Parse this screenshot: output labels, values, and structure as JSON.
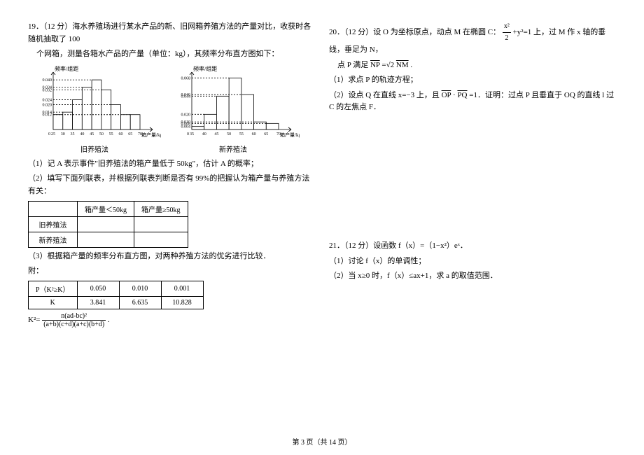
{
  "page": {
    "footer": "第 3 页（共 14 页）"
  },
  "q19": {
    "header": "19．（12 分）海水养殖场进行某水产品的新、旧网箱养殖方法的产量对比，收获时各随机抽取了 100",
    "header2": "个网箱，测量各箱水产品的产量（单位：kg），其频率分布直方图如下：",
    "ylabel1": "频率/组距",
    "ylabel2": "频率/组距",
    "xlabel1": "箱产量/kg",
    "xlabel2": "箱产量/kg",
    "method1": "旧养殖法",
    "method2": "新养殖法",
    "hist1": {
      "yticks": [
        "0.040",
        "0.034",
        "0.032",
        "0.024",
        "0.020",
        "0.014",
        "0.012"
      ],
      "xticks": [
        "25",
        "30",
        "35",
        "40",
        "45",
        "50",
        "55",
        "60",
        "65",
        "70"
      ],
      "bars": [
        0.012,
        0.014,
        0.024,
        0.034,
        0.04,
        0.032,
        0.02,
        0.012,
        0.012
      ],
      "ymax": 0.044,
      "bar_color": "#ffffff",
      "line_color": "#000000"
    },
    "hist2": {
      "yticks": [
        "0.068",
        "0.046",
        "0.044",
        "0.020",
        "0.010",
        "0.008",
        "0.004"
      ],
      "xticks": [
        "35",
        "40",
        "45",
        "50",
        "55",
        "60",
        "65",
        "70"
      ],
      "bars": [
        0.004,
        0.02,
        0.044,
        0.068,
        0.046,
        0.01,
        0.008
      ],
      "ymax": 0.072,
      "bar_color": "#ffffff",
      "line_color": "#000000"
    },
    "sub1": "（1）记 A 表示事件\"旧养殖法的箱产量低于 50kg\"，估计 A 的概率；",
    "sub2": "（2）填写下面列联表，并根据列联表判断是否有 99%的把握认为箱产量与养殖方法有关：",
    "table1": {
      "h1": "",
      "h2": "箱产量＜50kg",
      "h3": "箱产量≥50kg",
      "r1": "旧养殖法",
      "r2": "新养殖法"
    },
    "sub3": "（3）根据箱产量的频率分布直方图，对两种养殖方法的优劣进行比较．",
    "appendix": "附：",
    "table2": {
      "r1c1": "P（K²≥K）",
      "r1c2": "0.050",
      "r1c3": "0.010",
      "r1c4": "0.001",
      "r2c1": "K",
      "r2c2": "3.841",
      "r2c3": "6.635",
      "r2c4": "10.828"
    },
    "formula_lhs": "K²=",
    "formula_num": "n(ad-bc)²",
    "formula_den": "(a+b)(c+d)(a+c)(b+d)",
    "formula_end": "."
  },
  "q20": {
    "header_a": "20．（12 分）设 O 为坐标原点，动点 M 在椭圆 C：",
    "frac_num": "x²",
    "frac_den": "2",
    "header_b": "+y²=1 上，过 M 作 x 轴的垂线，垂足为 N，",
    "line2a": "点 P 满足 ",
    "np": "NP",
    "eq": "=√2",
    "nm": "NM",
    "line2b": ".",
    "sub1": "（1）求点 P 的轨迹方程；",
    "sub2a": "（2）设点 Q 在直线 x=−3 上，且 ",
    "op": "OP",
    "dot": "·",
    "pq": "PQ",
    "sub2b": "=1．证明：过点 P 且垂直于 OQ 的直线 l 过 C 的左焦点 F．"
  },
  "q21": {
    "header": "21．（12 分）设函数 f（x）=（1−x²）eˣ．",
    "sub1": "（1）讨论 f（x）的单调性；",
    "sub2": "（2）当 x≥0 时，f（x）≤ax+1，求 a 的取值范围．"
  }
}
